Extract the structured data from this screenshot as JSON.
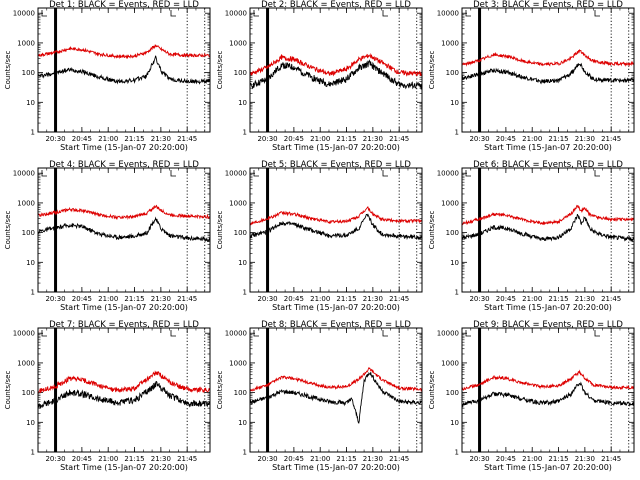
{
  "figure": {
    "background": "#ffffff",
    "series_colors": {
      "events": "#000000",
      "lld": "#dd0000"
    }
  },
  "chart_data": [
    {
      "type": "line",
      "title": "Det 1: BLACK = Events, RED = LLD",
      "xlabel": "Start Time (15-Jan-07 20:20:00)",
      "ylabel": "Counts/sec",
      "yscale": "log",
      "ylim": [
        1,
        15000
      ],
      "yticks": [
        "1",
        "10",
        "100",
        "1000",
        "10000"
      ],
      "xlim_minutes_after_start": [
        0,
        98
      ],
      "xticks": [
        "20:30",
        "20:45",
        "21:00",
        "21:15",
        "21:30",
        "21:45"
      ],
      "markers": [
        {
          "style": "solid-thick",
          "time": "20:30"
        },
        {
          "style": "dotted",
          "time": "21:45"
        },
        {
          "style": "dotted",
          "time": "21:55"
        }
      ],
      "series": [
        {
          "name": "Events",
          "color": "#000000",
          "time": [
            "20:20",
            "20:30",
            "20:38",
            "20:45",
            "20:55",
            "21:05",
            "21:15",
            "21:22",
            "21:27",
            "21:30",
            "21:35",
            "21:45",
            "21:58"
          ],
          "values": [
            75,
            100,
            125,
            110,
            70,
            50,
            55,
            80,
            320,
            120,
            60,
            50,
            50
          ]
        },
        {
          "name": "LLD",
          "color": "#dd0000",
          "time": [
            "20:20",
            "20:30",
            "20:38",
            "20:45",
            "20:55",
            "21:05",
            "21:15",
            "21:22",
            "21:27",
            "21:30",
            "21:35",
            "21:45",
            "21:58"
          ],
          "values": [
            380,
            480,
            640,
            600,
            420,
            350,
            360,
            480,
            820,
            620,
            420,
            380,
            380
          ]
        }
      ]
    },
    {
      "type": "line",
      "title": "Det 2: BLACK = Events, RED = LLD",
      "xlabel": "Start Time (15-Jan-07 20:20:00)",
      "ylabel": "Counts/sec",
      "yscale": "log",
      "ylim": [
        1,
        15000
      ],
      "yticks": [
        "1",
        "10",
        "100",
        "1000",
        "10000"
      ],
      "xlim_minutes_after_start": [
        0,
        98
      ],
      "xticks": [
        "20:30",
        "20:45",
        "21:00",
        "21:15",
        "21:30",
        "21:45"
      ],
      "markers": [
        {
          "style": "solid-thick",
          "time": "20:30"
        },
        {
          "style": "dotted",
          "time": "21:45"
        },
        {
          "style": "dotted",
          "time": "21:55"
        }
      ],
      "series": [
        {
          "name": "Events",
          "color": "#000000",
          "time": [
            "20:20",
            "20:30",
            "20:38",
            "20:45",
            "20:55",
            "21:05",
            "21:15",
            "21:22",
            "21:28",
            "21:35",
            "21:45",
            "21:58"
          ],
          "values": [
            35,
            60,
            180,
            150,
            70,
            40,
            60,
            140,
            200,
            100,
            40,
            35
          ]
        },
        {
          "name": "LLD",
          "color": "#dd0000",
          "time": [
            "20:20",
            "20:30",
            "20:38",
            "20:45",
            "20:55",
            "21:05",
            "21:15",
            "21:22",
            "21:28",
            "21:35",
            "21:45",
            "21:58"
          ],
          "values": [
            90,
            150,
            320,
            280,
            150,
            90,
            130,
            280,
            380,
            220,
            100,
            90
          ]
        }
      ]
    },
    {
      "type": "line",
      "title": "Det 3: BLACK = Events, RED = LLD",
      "xlabel": "Start Time (15-Jan-07 20:20:00)",
      "ylabel": "Counts/sec",
      "yscale": "log",
      "ylim": [
        1,
        15000
      ],
      "yticks": [
        "1",
        "10",
        "100",
        "1000",
        "10000"
      ],
      "xlim_minutes_after_start": [
        0,
        98
      ],
      "xticks": [
        "20:30",
        "20:45",
        "21:00",
        "21:15",
        "21:30",
        "21:45"
      ],
      "markers": [
        {
          "style": "solid-thick",
          "time": "20:30"
        },
        {
          "style": "dotted",
          "time": "21:45"
        },
        {
          "style": "dotted",
          "time": "21:55"
        }
      ],
      "series": [
        {
          "name": "Events",
          "color": "#000000",
          "time": [
            "20:20",
            "20:30",
            "20:38",
            "20:45",
            "20:55",
            "21:05",
            "21:15",
            "21:22",
            "21:27",
            "21:30",
            "21:35",
            "21:45",
            "21:58"
          ],
          "values": [
            65,
            90,
            120,
            105,
            70,
            50,
            55,
            90,
            220,
            110,
            60,
            55,
            55
          ]
        },
        {
          "name": "LLD",
          "color": "#dd0000",
          "time": [
            "20:20",
            "20:30",
            "20:38",
            "20:45",
            "20:55",
            "21:05",
            "21:15",
            "21:22",
            "21:27",
            "21:30",
            "21:35",
            "21:45",
            "21:58"
          ],
          "values": [
            180,
            260,
            400,
            360,
            240,
            190,
            200,
            300,
            560,
            380,
            240,
            200,
            200
          ]
        }
      ]
    },
    {
      "type": "line",
      "title": "Det 4: BLACK = Events, RED = LLD",
      "xlabel": "Start Time (15-Jan-07 20:20:00)",
      "ylabel": "Counts/sec",
      "yscale": "log",
      "ylim": [
        1,
        15000
      ],
      "yticks": [
        "1",
        "10",
        "100",
        "1000",
        "10000"
      ],
      "xlim_minutes_after_start": [
        0,
        98
      ],
      "xticks": [
        "20:30",
        "20:45",
        "21:00",
        "21:15",
        "21:30",
        "21:45"
      ],
      "markers": [
        {
          "style": "solid-thick",
          "time": "20:30"
        },
        {
          "style": "dotted",
          "time": "21:45"
        },
        {
          "style": "dotted",
          "time": "21:55"
        }
      ],
      "series": [
        {
          "name": "Events",
          "color": "#000000",
          "time": [
            "20:20",
            "20:30",
            "20:38",
            "20:45",
            "20:55",
            "21:05",
            "21:15",
            "21:22",
            "21:27",
            "21:30",
            "21:35",
            "21:45",
            "21:58"
          ],
          "values": [
            110,
            140,
            180,
            160,
            90,
            70,
            75,
            100,
            300,
            140,
            80,
            65,
            60
          ]
        },
        {
          "name": "LLD",
          "color": "#dd0000",
          "time": [
            "20:20",
            "20:30",
            "20:38",
            "20:45",
            "20:55",
            "21:05",
            "21:15",
            "21:22",
            "21:27",
            "21:30",
            "21:35",
            "21:45",
            "21:58"
          ],
          "values": [
            380,
            480,
            600,
            560,
            400,
            330,
            340,
            450,
            780,
            560,
            400,
            360,
            340
          ]
        }
      ]
    },
    {
      "type": "line",
      "title": "Det 5: BLACK = Events, RED = LLD",
      "xlabel": "Start Time (15-Jan-07 20:20:00)",
      "ylabel": "Counts/sec",
      "yscale": "log",
      "ylim": [
        1,
        15000
      ],
      "yticks": [
        "1",
        "10",
        "100",
        "1000",
        "10000"
      ],
      "xlim_minutes_after_start": [
        0,
        98
      ],
      "xticks": [
        "20:30",
        "20:45",
        "21:00",
        "21:15",
        "21:30",
        "21:45"
      ],
      "markers": [
        {
          "style": "solid-thick",
          "time": "20:30"
        },
        {
          "style": "dotted",
          "time": "21:45"
        },
        {
          "style": "dotted",
          "time": "21:55"
        }
      ],
      "series": [
        {
          "name": "Events",
          "color": "#000000",
          "time": [
            "20:20",
            "20:30",
            "20:38",
            "20:45",
            "20:55",
            "21:05",
            "21:15",
            "21:22",
            "21:27",
            "21:30",
            "21:35",
            "21:45",
            "21:58"
          ],
          "values": [
            75,
            110,
            210,
            190,
            120,
            80,
            80,
            140,
            420,
            180,
            90,
            75,
            70
          ]
        },
        {
          "name": "LLD",
          "color": "#dd0000",
          "time": [
            "20:20",
            "20:30",
            "20:38",
            "20:45",
            "20:55",
            "21:05",
            "21:15",
            "21:22",
            "21:27",
            "21:30",
            "21:35",
            "21:45",
            "21:58"
          ],
          "values": [
            200,
            300,
            460,
            420,
            300,
            230,
            240,
            350,
            700,
            420,
            280,
            250,
            250
          ]
        }
      ]
    },
    {
      "type": "line",
      "title": "Det 6: BLACK = Events, RED = LLD",
      "xlabel": "Start Time (15-Jan-07 20:20:00)",
      "ylabel": "Counts/sec",
      "yscale": "log",
      "ylim": [
        1,
        15000
      ],
      "yticks": [
        "1",
        "10",
        "100",
        "1000",
        "10000"
      ],
      "xlim_minutes_after_start": [
        0,
        98
      ],
      "xticks": [
        "20:30",
        "20:45",
        "21:00",
        "21:15",
        "21:30",
        "21:45"
      ],
      "markers": [
        {
          "style": "solid-thick",
          "time": "20:30"
        },
        {
          "style": "dotted",
          "time": "21:45"
        },
        {
          "style": "dotted",
          "time": "21:55"
        }
      ],
      "series": [
        {
          "name": "Events",
          "color": "#000000",
          "time": [
            "20:20",
            "20:30",
            "20:38",
            "20:45",
            "20:55",
            "21:05",
            "21:15",
            "21:22",
            "21:26",
            "21:28",
            "21:30",
            "21:33",
            "21:38",
            "21:45",
            "21:58"
          ],
          "values": [
            65,
            90,
            150,
            140,
            90,
            60,
            70,
            140,
            400,
            200,
            330,
            130,
            90,
            70,
            60
          ]
        },
        {
          "name": "LLD",
          "color": "#dd0000",
          "time": [
            "20:20",
            "20:30",
            "20:38",
            "20:45",
            "20:55",
            "21:05",
            "21:15",
            "21:22",
            "21:26",
            "21:28",
            "21:30",
            "21:33",
            "21:38",
            "21:45",
            "21:58"
          ],
          "values": [
            200,
            280,
            420,
            380,
            270,
            210,
            230,
            420,
            800,
            520,
            650,
            400,
            320,
            280,
            280
          ]
        }
      ]
    },
    {
      "type": "line",
      "title": "Det 7: BLACK = Events, RED = LLD",
      "xlabel": "Start Time (15-Jan-07 20:20:00)",
      "ylabel": "Counts/sec",
      "yscale": "log",
      "ylim": [
        1,
        15000
      ],
      "yticks": [
        "1",
        "10",
        "100",
        "1000",
        "10000"
      ],
      "xlim_minutes_after_start": [
        0,
        98
      ],
      "xticks": [
        "20:30",
        "20:45",
        "21:00",
        "21:15",
        "21:30",
        "21:45"
      ],
      "markers": [
        {
          "style": "solid-thick",
          "time": "20:30"
        },
        {
          "style": "dotted",
          "time": "21:45"
        },
        {
          "style": "dotted",
          "time": "21:55"
        }
      ],
      "series": [
        {
          "name": "Events",
          "color": "#000000",
          "time": [
            "20:20",
            "20:30",
            "20:38",
            "20:45",
            "20:55",
            "21:05",
            "21:15",
            "21:22",
            "21:28",
            "21:35",
            "21:45",
            "21:58"
          ],
          "values": [
            35,
            55,
            100,
            90,
            60,
            45,
            55,
            110,
            200,
            80,
            45,
            40
          ]
        },
        {
          "name": "LLD",
          "color": "#dd0000",
          "time": [
            "20:20",
            "20:30",
            "20:38",
            "20:45",
            "20:55",
            "21:05",
            "21:15",
            "21:22",
            "21:28",
            "21:35",
            "21:45",
            "21:58"
          ],
          "values": [
            110,
            160,
            300,
            270,
            170,
            120,
            140,
            280,
            480,
            220,
            130,
            120
          ]
        }
      ]
    },
    {
      "type": "line",
      "title": "Det 8: BLACK = Events, RED = LLD",
      "xlabel": "Start Time (15-Jan-07 20:20:00)",
      "ylabel": "Counts/sec",
      "yscale": "log",
      "ylim": [
        1,
        15000
      ],
      "yticks": [
        "1",
        "10",
        "100",
        "1000",
        "10000"
      ],
      "xlim_minutes_after_start": [
        0,
        98
      ],
      "xticks": [
        "20:30",
        "20:45",
        "21:00",
        "21:15",
        "21:30",
        "21:45"
      ],
      "markers": [
        {
          "style": "solid-thick",
          "time": "20:30"
        },
        {
          "style": "dotted",
          "time": "21:45"
        },
        {
          "style": "dotted",
          "time": "21:55"
        }
      ],
      "series": [
        {
          "name": "Events",
          "color": "#000000",
          "time": [
            "20:20",
            "20:30",
            "20:38",
            "20:45",
            "20:55",
            "21:05",
            "21:15",
            "21:18",
            "21:22",
            "21:25",
            "21:28",
            "21:35",
            "21:45",
            "21:58"
          ],
          "values": [
            45,
            70,
            110,
            100,
            70,
            50,
            45,
            60,
            10,
            250,
            500,
            120,
            50,
            45
          ]
        },
        {
          "name": "LLD",
          "color": "#dd0000",
          "time": [
            "20:20",
            "20:30",
            "20:38",
            "20:45",
            "20:55",
            "21:05",
            "21:15",
            "21:22",
            "21:28",
            "21:35",
            "21:45",
            "21:58"
          ],
          "values": [
            120,
            180,
            330,
            300,
            200,
            150,
            160,
            280,
            650,
            280,
            140,
            130
          ]
        }
      ]
    },
    {
      "type": "line",
      "title": "Det 9: BLACK = Events, RED = LLD",
      "xlabel": "Start Time (15-Jan-07 20:20:00)",
      "ylabel": "Counts/sec",
      "yscale": "log",
      "ylim": [
        1,
        15000
      ],
      "yticks": [
        "1",
        "10",
        "100",
        "1000",
        "10000"
      ],
      "xlim_minutes_after_start": [
        0,
        98
      ],
      "xticks": [
        "20:30",
        "20:45",
        "21:00",
        "21:15",
        "21:30",
        "21:45"
      ],
      "markers": [
        {
          "style": "solid-thick",
          "time": "20:30"
        },
        {
          "style": "dotted",
          "time": "21:45"
        },
        {
          "style": "dotted",
          "time": "21:55"
        }
      ],
      "series": [
        {
          "name": "Events",
          "color": "#000000",
          "time": [
            "20:20",
            "20:30",
            "20:38",
            "20:45",
            "20:55",
            "21:05",
            "21:15",
            "21:22",
            "21:27",
            "21:30",
            "21:35",
            "21:45",
            "21:58"
          ],
          "values": [
            40,
            55,
            90,
            85,
            60,
            45,
            50,
            90,
            220,
            100,
            55,
            45,
            42
          ]
        },
        {
          "name": "LLD",
          "color": "#dd0000",
          "time": [
            "20:20",
            "20:30",
            "20:38",
            "20:45",
            "20:55",
            "21:05",
            "21:15",
            "21:22",
            "21:27",
            "21:30",
            "21:35",
            "21:45",
            "21:58"
          ],
          "values": [
            130,
            190,
            330,
            300,
            210,
            160,
            170,
            290,
            500,
            300,
            180,
            150,
            150
          ]
        }
      ]
    }
  ]
}
